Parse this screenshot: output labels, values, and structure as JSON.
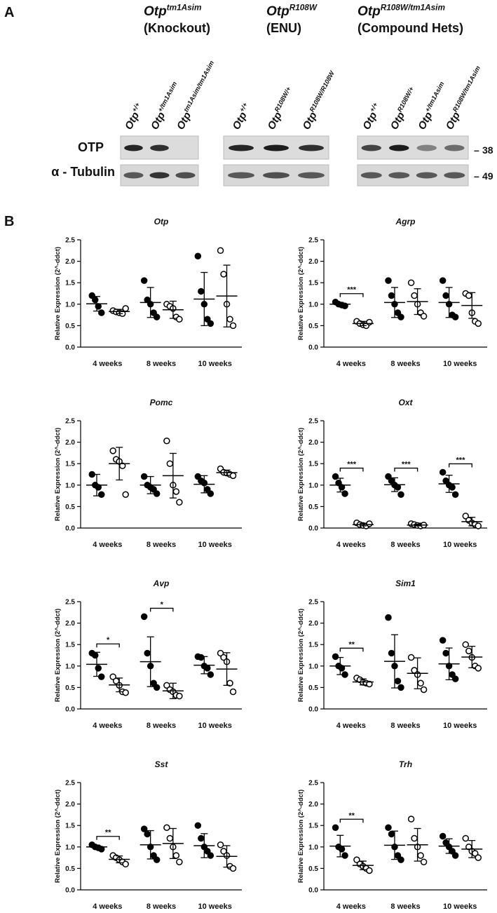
{
  "panel_a": {
    "label": "A",
    "row_labels": [
      "OTP",
      "α - Tubulin"
    ],
    "markers": [
      "38",
      "49"
    ],
    "groups": [
      {
        "title": {
          "base": "Otp",
          "sup": "tm1Asim"
        },
        "subtitle": "(Knockout)",
        "lanes": [
          {
            "base": "Otp",
            "sup": "+/+"
          },
          {
            "base": "Otp",
            "sup": "+/tm1Asim"
          },
          {
            "base": "Otp",
            "sup": "tm1Asim/tm1Asim"
          }
        ]
      },
      {
        "title": {
          "base": "Otp",
          "sup": "R108W"
        },
        "subtitle": "(ENU)",
        "lanes": [
          {
            "base": "Otp",
            "sup": "+/+"
          },
          {
            "base": "Otp",
            "sup": "R108W/+"
          },
          {
            "base": "Otp",
            "sup": "R108W/R108W"
          }
        ]
      },
      {
        "title": {
          "base": "Otp",
          "sup": "R108W/tm1Asim"
        },
        "subtitle": "(Compound Hets)",
        "lanes": [
          {
            "base": "Otp",
            "sup": "+/+"
          },
          {
            "base": "Otp",
            "sup": "R108W/+"
          },
          {
            "base": "Otp",
            "sup": "+/tm1Asim"
          },
          {
            "base": "Otp",
            "sup": "R108W/tm1Asim"
          }
        ]
      }
    ]
  },
  "panel_b": {
    "label": "B"
  },
  "chart_data": [
    {
      "type": "scatter",
      "title": "Otp",
      "ylabel": "Relative Expression (2^-ddct)",
      "categories": [
        "4 weeks",
        "8 weeks",
        "10 weeks"
      ],
      "ylim": [
        0,
        2.5
      ],
      "yticks": [
        {
          "value": 0,
          "label": "0.0"
        },
        0.5,
        {
          "value": 1,
          "label": "1.0"
        },
        1.5,
        {
          "value": 2,
          "label": "2.0"
        },
        2.5
      ],
      "series": [
        {
          "marker": "filled",
          "color": "#000000",
          "values": [
            [
              1.2,
              1.1,
              0.95,
              0.8
            ],
            [
              1.55,
              1.1,
              1.0,
              0.8,
              0.7
            ],
            [
              2.12,
              1.3,
              1.0,
              0.65,
              0.55
            ]
          ],
          "means": [
            1.01,
            1.04,
            1.12
          ],
          "sd": [
            0.17,
            0.35,
            0.62
          ]
        },
        {
          "marker": "open",
          "color": "#000000",
          "values": [
            [
              0.85,
              0.82,
              0.8,
              0.78,
              0.9
            ],
            [
              1.0,
              0.95,
              0.9,
              0.7,
              0.65
            ],
            [
              2.25,
              1.7,
              1.0,
              0.65,
              0.5
            ]
          ],
          "means": [
            0.83,
            0.87,
            1.19
          ],
          "sd": [
            0.05,
            0.2,
            0.72
          ]
        }
      ],
      "annotations": []
    },
    {
      "type": "scatter",
      "title": "Agrp",
      "ylabel": "Relative Expression (2^-ddct)",
      "categories": [
        "4 weeks",
        "8 weeks",
        "10 weeks"
      ],
      "ylim": [
        0,
        2.5
      ],
      "yticks": [
        {
          "value": 0,
          "label": "0.0"
        },
        0.5,
        {
          "value": 1,
          "label": "1.0"
        },
        1.5,
        {
          "value": 2,
          "label": "2.0"
        },
        2.5
      ],
      "series": [
        {
          "marker": "filled",
          "color": "#000000",
          "values": [
            [
              1.05,
              1.0,
              0.98,
              0.96
            ],
            [
              1.55,
              1.2,
              1.0,
              0.8,
              0.7
            ],
            [
              1.55,
              1.2,
              1.0,
              0.75,
              0.7
            ]
          ],
          "means": [
            1.0,
            1.04,
            1.04
          ],
          "sd": [
            0.04,
            0.35,
            0.35
          ]
        },
        {
          "marker": "open",
          "color": "#000000",
          "values": [
            [
              0.6,
              0.55,
              0.52,
              0.5,
              0.58
            ],
            [
              1.5,
              1.2,
              1.0,
              0.8,
              0.72
            ],
            [
              1.25,
              1.2,
              0.8,
              0.6,
              0.55
            ]
          ],
          "means": [
            0.55,
            1.06,
            0.97
          ],
          "sd": [
            0.05,
            0.3,
            0.3
          ]
        }
      ],
      "annotations": [
        {
          "text": "***",
          "category": 0
        }
      ]
    },
    {
      "type": "scatter",
      "title": "Pomc",
      "ylabel": "Relative Expression (2^-ddct)",
      "categories": [
        "4 weeks",
        "8 weeks",
        "10 weeks"
      ],
      "ylim": [
        0,
        2.5
      ],
      "yticks": [
        {
          "value": 0,
          "label": "0.0"
        },
        0.5,
        {
          "value": 1,
          "label": "1.0"
        },
        1.5,
        {
          "value": 2,
          "label": "2.0"
        },
        2.5
      ],
      "series": [
        {
          "marker": "filled",
          "color": "#000000",
          "values": [
            [
              1.25,
              1.0,
              0.95,
              0.78
            ],
            [
              1.2,
              1.0,
              0.95,
              0.9,
              0.8
            ],
            [
              1.2,
              1.1,
              1.05,
              0.9,
              0.8
            ]
          ],
          "means": [
            1.0,
            1.0,
            1.02
          ],
          "sd": [
            0.25,
            0.2,
            0.2
          ]
        },
        {
          "marker": "open",
          "color": "#000000",
          "values": [
            [
              1.8,
              1.6,
              1.55,
              1.45,
              0.78
            ],
            [
              2.03,
              1.5,
              1.0,
              0.85,
              0.6
            ],
            [
              1.38,
              1.3,
              1.28,
              1.25,
              1.22
            ]
          ],
          "means": [
            1.5,
            1.22,
            1.29
          ],
          "sd": [
            0.38,
            0.52,
            0.06
          ]
        }
      ],
      "annotations": []
    },
    {
      "type": "scatter",
      "title": "Oxt",
      "ylabel": "Relative Expression (2^-ddct)",
      "categories": [
        "4 weeks",
        "8 weeks",
        "10 weeks"
      ],
      "ylim": [
        0,
        2.5
      ],
      "yticks": [
        {
          "value": 0,
          "label": "0.0"
        },
        0.5,
        {
          "value": 1,
          "label": "1.0"
        },
        1.5,
        {
          "value": 2,
          "label": "2.0"
        },
        2.5
      ],
      "series": [
        {
          "marker": "filled",
          "color": "#000000",
          "values": [
            [
              1.2,
              1.05,
              0.95,
              0.8
            ],
            [
              1.2,
              1.1,
              1.0,
              0.95,
              0.78
            ],
            [
              1.3,
              1.1,
              1.0,
              0.95,
              0.78
            ]
          ],
          "means": [
            1.0,
            1.01,
            1.03
          ],
          "sd": [
            0.16,
            0.16,
            0.2
          ]
        },
        {
          "marker": "open",
          "color": "#000000",
          "values": [
            [
              0.12,
              0.08,
              0.06,
              0.05,
              0.1
            ],
            [
              0.1,
              0.08,
              0.06,
              0.05,
              0.07
            ],
            [
              0.28,
              0.18,
              0.12,
              0.08,
              0.05
            ]
          ],
          "means": [
            0.08,
            0.07,
            0.15
          ],
          "sd": [
            0.03,
            0.02,
            0.1
          ]
        }
      ],
      "annotations": [
        {
          "text": "***",
          "category": 0
        },
        {
          "text": "***",
          "category": 1
        },
        {
          "text": "***",
          "category": 2
        }
      ]
    },
    {
      "type": "scatter",
      "title": "Avp",
      "ylabel": "Relative Expression (2^-ddct)",
      "categories": [
        "4 weeks",
        "8 weeks",
        "10 weeks"
      ],
      "ylim": [
        0,
        2.5
      ],
      "yticks": [
        {
          "value": 0,
          "label": "0.0"
        },
        0.5,
        {
          "value": 1,
          "label": "1.0"
        },
        1.5,
        {
          "value": 2,
          "label": "2.0"
        },
        2.5
      ],
      "series": [
        {
          "marker": "filled",
          "color": "#000000",
          "values": [
            [
              1.3,
              1.25,
              0.95,
              0.75
            ],
            [
              2.15,
              1.3,
              1.0,
              0.6,
              0.5
            ],
            [
              1.22,
              1.2,
              1.0,
              0.95,
              0.8
            ]
          ],
          "means": [
            1.04,
            1.1,
            1.02
          ],
          "sd": [
            0.28,
            0.58,
            0.2
          ]
        },
        {
          "marker": "open",
          "color": "#000000",
          "values": [
            [
              0.75,
              0.65,
              0.55,
              0.4,
              0.38
            ],
            [
              0.55,
              0.45,
              0.4,
              0.32,
              0.3
            ],
            [
              1.3,
              1.2,
              1.1,
              0.6,
              0.4
            ]
          ],
          "means": [
            0.56,
            0.42,
            0.93
          ],
          "sd": [
            0.16,
            0.18,
            0.38
          ]
        }
      ],
      "annotations": [
        {
          "text": "*",
          "category": 0
        },
        {
          "text": "*",
          "category": 1
        }
      ]
    },
    {
      "type": "scatter",
      "title": "Sim1",
      "ylabel": "Relative Expression (2^-ddct)",
      "categories": [
        "4 weeks",
        "8 weeks",
        "10 weeks"
      ],
      "ylim": [
        0,
        2.5
      ],
      "yticks": [
        {
          "value": 0,
          "label": "0.0"
        },
        0.5,
        {
          "value": 1,
          "label": "1.0"
        },
        1.5,
        {
          "value": 2,
          "label": "2.0"
        },
        2.5
      ],
      "series": [
        {
          "marker": "filled",
          "color": "#000000",
          "values": [
            [
              1.22,
              1.0,
              0.95,
              0.8
            ],
            [
              2.13,
              1.3,
              1.0,
              0.65,
              0.5
            ],
            [
              1.6,
              1.3,
              1.0,
              0.8,
              0.7
            ]
          ],
          "means": [
            1.0,
            1.11,
            1.05
          ],
          "sd": [
            0.2,
            0.62,
            0.37
          ]
        },
        {
          "marker": "open",
          "color": "#000000",
          "values": [
            [
              0.72,
              0.68,
              0.62,
              0.6,
              0.58
            ],
            [
              1.2,
              0.9,
              0.8,
              0.6,
              0.45
            ],
            [
              1.5,
              1.35,
              1.2,
              1.0,
              0.95
            ]
          ],
          "means": [
            0.63,
            0.83,
            1.21
          ],
          "sd": [
            0.07,
            0.36,
            0.25
          ]
        }
      ],
      "annotations": [
        {
          "text": "**",
          "category": 0
        }
      ]
    },
    {
      "type": "scatter",
      "title": "Sst",
      "ylabel": "Relative Expression (2^-ddct)",
      "categories": [
        "4 weeks",
        "8 weeks",
        "10 weeks"
      ],
      "ylim": [
        0,
        2.5
      ],
      "yticks": [
        {
          "value": 0,
          "label": "0.0"
        },
        0.5,
        {
          "value": 1,
          "label": "1.0"
        },
        1.5,
        {
          "value": 2,
          "label": "2.0"
        },
        2.5
      ],
      "series": [
        {
          "marker": "filled",
          "color": "#000000",
          "values": [
            [
              1.05,
              1.0,
              0.98,
              0.95
            ],
            [
              1.42,
              1.3,
              1.0,
              0.8,
              0.7
            ],
            [
              1.5,
              1.2,
              1.0,
              0.9,
              0.8
            ]
          ],
          "means": [
            1.0,
            1.05,
            1.03
          ],
          "sd": [
            0.04,
            0.33,
            0.28
          ]
        },
        {
          "marker": "open",
          "color": "#000000",
          "values": [
            [
              0.8,
              0.75,
              0.7,
              0.65,
              0.6
            ],
            [
              1.45,
              1.2,
              1.0,
              0.8,
              0.65
            ],
            [
              1.05,
              0.9,
              0.8,
              0.55,
              0.5
            ]
          ],
          "means": [
            0.71,
            1.08,
            0.78
          ],
          "sd": [
            0.08,
            0.35,
            0.25
          ]
        }
      ],
      "annotations": [
        {
          "text": "**",
          "category": 0
        }
      ]
    },
    {
      "type": "scatter",
      "title": "Trh",
      "ylabel": "Relative Expression (2^-ddct)",
      "categories": [
        "4 weeks",
        "8 weeks",
        "10 weeks"
      ],
      "ylim": [
        0,
        2.5
      ],
      "yticks": [
        {
          "value": 0,
          "label": "0.0"
        },
        0.5,
        {
          "value": 1,
          "label": "1.0"
        },
        1.5,
        {
          "value": 2,
          "label": "2.0"
        },
        2.5
      ],
      "series": [
        {
          "marker": "filled",
          "color": "#000000",
          "values": [
            [
              1.45,
              1.0,
              0.95,
              0.8
            ],
            [
              1.45,
              1.3,
              1.0,
              0.8,
              0.7
            ],
            [
              1.25,
              1.1,
              1.0,
              0.9,
              0.8
            ]
          ],
          "means": [
            1.02,
            1.04,
            1.02
          ],
          "sd": [
            0.25,
            0.33,
            0.17
          ]
        },
        {
          "marker": "open",
          "color": "#000000",
          "values": [
            [
              0.7,
              0.6,
              0.55,
              0.5,
              0.45
            ],
            [
              1.65,
              1.2,
              1.0,
              0.8,
              0.65
            ],
            [
              1.2,
              1.0,
              0.9,
              0.85,
              0.75
            ]
          ],
          "means": [
            0.57,
            1.05,
            0.95
          ],
          "sd": [
            0.1,
            0.38,
            0.2
          ]
        }
      ],
      "annotations": [
        {
          "text": "**",
          "category": 0
        }
      ]
    }
  ]
}
